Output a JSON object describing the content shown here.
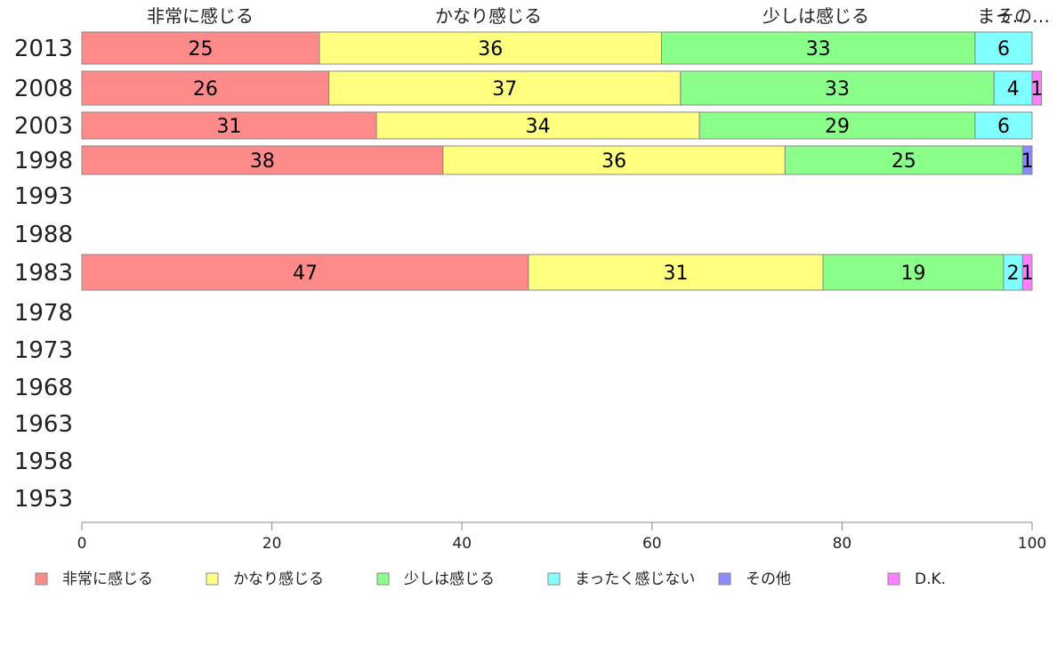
{
  "chart_data": {
    "type": "bar",
    "orientation": "horizontal",
    "stacked": true,
    "categories": [
      "2013",
      "2008",
      "2003",
      "1998",
      "1993",
      "1988",
      "1983",
      "1978",
      "1973",
      "1968",
      "1963",
      "1958",
      "1953"
    ],
    "top_labels": [
      "非常に感じる",
      "かなり感じる",
      "少しは感じる",
      "まっ…",
      "その…"
    ],
    "series": [
      {
        "name": "非常に感じる",
        "color": "#ff8a8a",
        "values": [
          25,
          26,
          31,
          38,
          null,
          null,
          47,
          null,
          null,
          null,
          null,
          null,
          null
        ]
      },
      {
        "name": "かなり感じる",
        "color": "#ffff80",
        "values": [
          36,
          37,
          34,
          36,
          null,
          null,
          31,
          null,
          null,
          null,
          null,
          null,
          null
        ]
      },
      {
        "name": "少しは感じる",
        "color": "#8aff8a",
        "values": [
          33,
          33,
          29,
          25,
          null,
          null,
          19,
          null,
          null,
          null,
          null,
          null,
          null
        ]
      },
      {
        "name": "まったく感じない",
        "color": "#80ffff",
        "values": [
          6,
          4,
          6,
          0,
          null,
          null,
          2,
          null,
          null,
          null,
          null,
          null,
          null
        ]
      },
      {
        "name": "その他",
        "color": "#8a8aff",
        "values": [
          0,
          0,
          0,
          1,
          null,
          null,
          0,
          null,
          null,
          null,
          null,
          null,
          null
        ]
      },
      {
        "name": "D.K.",
        "color": "#ff80ff",
        "values": [
          0,
          1,
          0,
          0,
          null,
          null,
          1,
          null,
          null,
          null,
          null,
          null,
          null
        ]
      }
    ],
    "xlim": [
      0,
      100
    ],
    "xticks": [
      0,
      20,
      40,
      60,
      80,
      100
    ],
    "legend_position": "bottom",
    "grid": false
  }
}
